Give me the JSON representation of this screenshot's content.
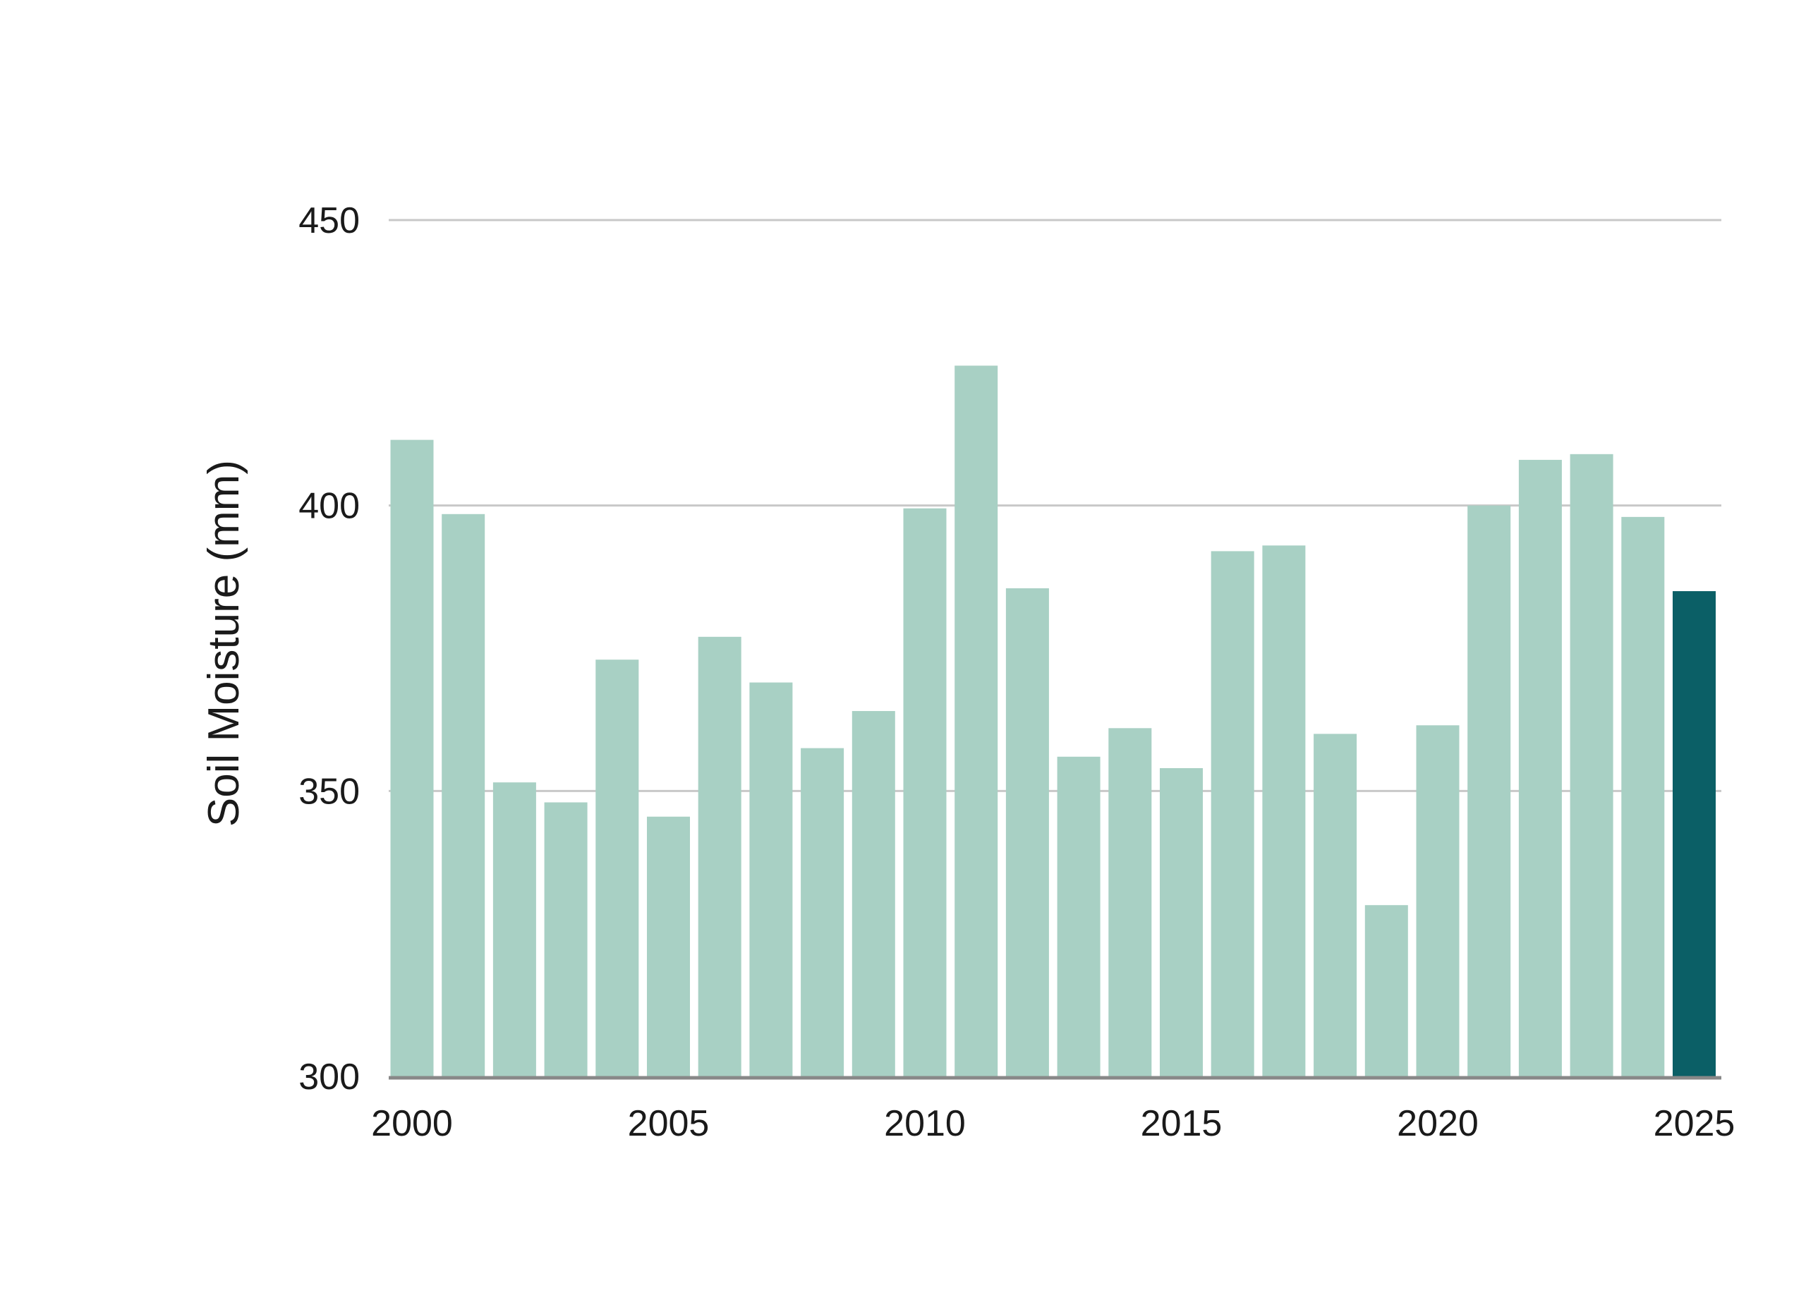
{
  "chart_data": {
    "type": "bar",
    "title": "",
    "xlabel": "",
    "ylabel": "Soil Moisture (mm)",
    "ylim": [
      300,
      450
    ],
    "yticks": [
      "300",
      "350",
      "400",
      "450"
    ],
    "xticks": [
      "2000",
      "2005",
      "2010",
      "2015",
      "2020",
      "2025"
    ],
    "grid": "horizontal",
    "legend": "none",
    "categories": [
      2000,
      2001,
      2002,
      2003,
      2004,
      2005,
      2006,
      2007,
      2008,
      2009,
      2010,
      2011,
      2012,
      2013,
      2014,
      2015,
      2016,
      2017,
      2018,
      2019,
      2020,
      2021,
      2022,
      2023,
      2024,
      2025
    ],
    "values": [
      411.5,
      398.5,
      351.5,
      348,
      373,
      345.5,
      377,
      369,
      357.5,
      364,
      399.5,
      424.5,
      385.5,
      356,
      361,
      354,
      392,
      393,
      360,
      330,
      361.5,
      400,
      408,
      409,
      398,
      385
    ],
    "colors": {
      "bar": "#a8d0c4",
      "highlight_bar": "#0b5f66",
      "grid": "#c8c8c8",
      "baseline": "#888888"
    },
    "highlight_category": 2025
  }
}
